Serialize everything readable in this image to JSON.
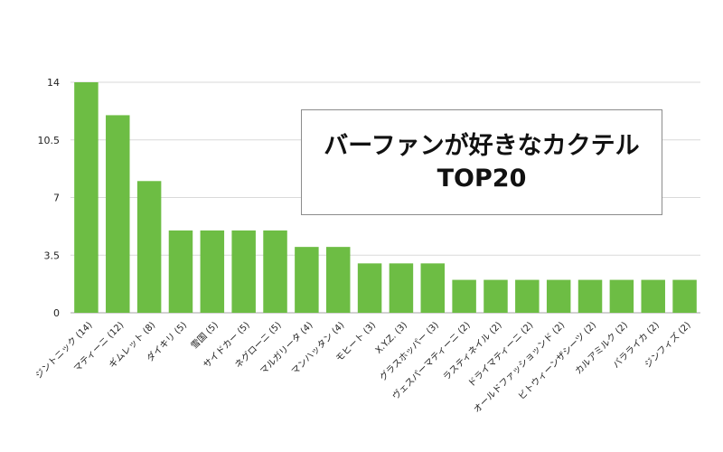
{
  "chart_data": {
    "type": "bar",
    "title_lines": [
      "バーファンが好きなカクテル",
      "TOP20"
    ],
    "categories": [
      "ジントニック (14)",
      "マティーニ (12)",
      "ギムレット (8)",
      "ダイキリ (5)",
      "雪国 (5)",
      "サイドカー (5)",
      "ネグローニ (5)",
      "マルガリータ (4)",
      "マンハッタン (4)",
      "モヒート (3)",
      "X.Y.Z. (3)",
      "グラスホッパー (3)",
      "ヴェスパーマティーニ (2)",
      "ラスティネイル (2)",
      "ドライマティーニ (2)",
      "オールドファッショッンド (2)",
      "ビトウィーンザシーツ (2)",
      "カルアミルク (2)",
      "バラライカ (2)",
      "ジンフィズ (2)"
    ],
    "values": [
      14,
      12,
      8,
      5,
      5,
      5,
      5,
      4,
      4,
      3,
      3,
      3,
      2,
      2,
      2,
      2,
      2,
      2,
      2,
      2
    ],
    "ylim": [
      0,
      14
    ],
    "yticks": [
      "0",
      "3.5",
      "7",
      "10.5",
      "14"
    ],
    "grid": true,
    "xlabel": "",
    "ylabel": "",
    "colors": {
      "bar": "#6dbd44",
      "grid": "#d9d9d9",
      "axis": "#a6a6a6",
      "text": "#222222"
    }
  }
}
